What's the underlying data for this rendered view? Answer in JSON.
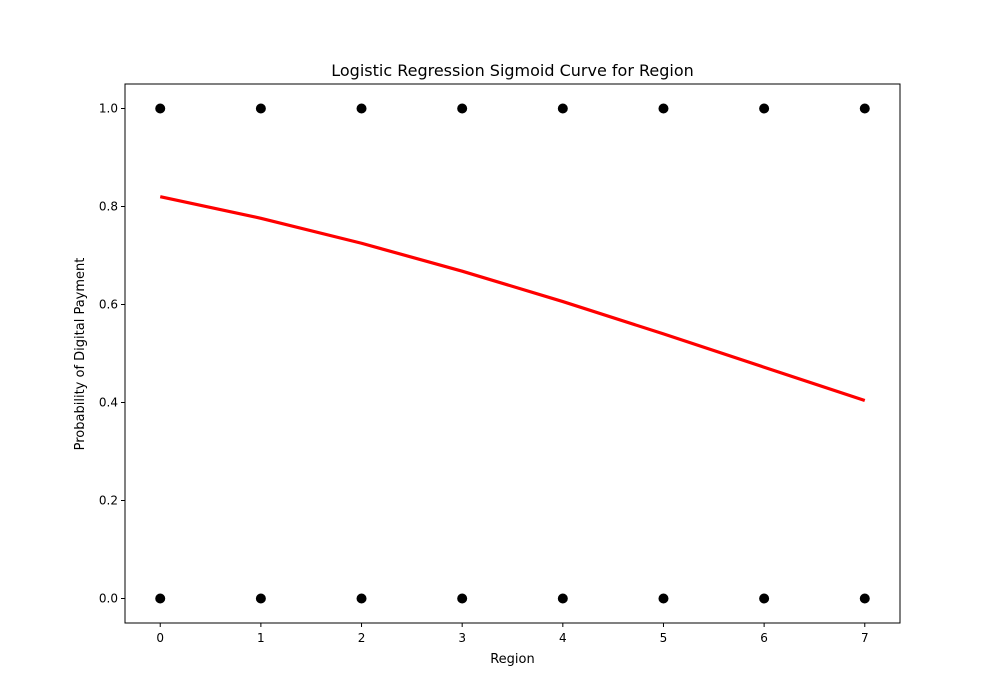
{
  "chart_data": {
    "type": "scatter",
    "title": "Logistic Regression Sigmoid Curve for Region",
    "xlabel": "Region",
    "ylabel": "Probability of Digital Payment",
    "xlim": [
      -0.35,
      7.35
    ],
    "ylim": [
      -0.05,
      1.05
    ],
    "xticks": [
      0,
      1,
      2,
      3,
      4,
      5,
      6,
      7
    ],
    "yticks": [
      0.0,
      0.2,
      0.4,
      0.6,
      0.8,
      1.0
    ],
    "xtick_labels": [
      "0",
      "1",
      "2",
      "3",
      "4",
      "5",
      "6",
      "7"
    ],
    "ytick_labels": [
      "0.0",
      "0.2",
      "0.4",
      "0.6",
      "0.8",
      "1.0"
    ],
    "grid": false,
    "legend": "none",
    "series": [
      {
        "kind": "scatter",
        "color": "#000000",
        "points": [
          {
            "x": 0,
            "y": 1
          },
          {
            "x": 1,
            "y": 1
          },
          {
            "x": 2,
            "y": 1
          },
          {
            "x": 3,
            "y": 1
          },
          {
            "x": 4,
            "y": 1
          },
          {
            "x": 5,
            "y": 1
          },
          {
            "x": 6,
            "y": 1
          },
          {
            "x": 7,
            "y": 1
          },
          {
            "x": 0,
            "y": 0
          },
          {
            "x": 1,
            "y": 0
          },
          {
            "x": 2,
            "y": 0
          },
          {
            "x": 3,
            "y": 0
          },
          {
            "x": 4,
            "y": 0
          },
          {
            "x": 5,
            "y": 0
          },
          {
            "x": 6,
            "y": 0
          },
          {
            "x": 7,
            "y": 0
          }
        ]
      },
      {
        "kind": "line",
        "color": "#ff0000",
        "x": [
          0,
          1,
          2,
          3,
          4,
          5,
          6,
          7
        ],
        "y": [
          0.82,
          0.776,
          0.725,
          0.668,
          0.606,
          0.54,
          0.472,
          0.404
        ]
      }
    ]
  }
}
